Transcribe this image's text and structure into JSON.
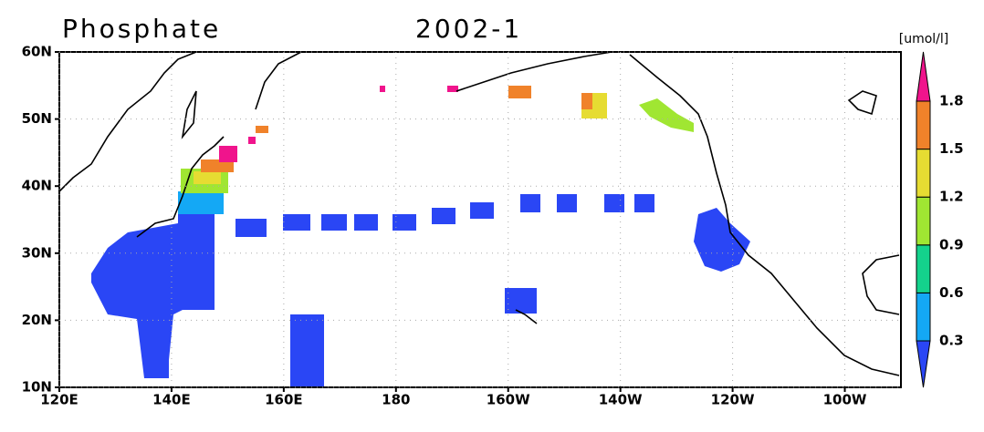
{
  "title": "Phosphate",
  "period": "2002-1",
  "units": "[umol/l]",
  "xlim": [
    120,
    270
  ],
  "ylim": [
    10,
    60
  ],
  "lat_ticks": [
    {
      "value": 10,
      "label": "10N"
    },
    {
      "value": 20,
      "label": "20N"
    },
    {
      "value": 30,
      "label": "30N"
    },
    {
      "value": 40,
      "label": "40N"
    },
    {
      "value": 50,
      "label": "50N"
    },
    {
      "value": 60,
      "label": "60N"
    }
  ],
  "lon_ticks": [
    {
      "value": 120,
      "label": "120E"
    },
    {
      "value": 140,
      "label": "140E"
    },
    {
      "value": 160,
      "label": "160E"
    },
    {
      "value": 180,
      "label": "180"
    },
    {
      "value": 200,
      "label": "160W"
    },
    {
      "value": 220,
      "label": "140W"
    },
    {
      "value": 240,
      "label": "120W"
    },
    {
      "value": 260,
      "label": "100W"
    }
  ],
  "colorbar": {
    "levels": [
      0.3,
      0.6,
      0.9,
      1.2,
      1.5,
      1.8
    ],
    "colors": [
      "#2a46f5",
      "#14a8f5",
      "#14d28c",
      "#a0e632",
      "#e6dc32",
      "#f0822a",
      "#f0148c"
    ]
  }
}
